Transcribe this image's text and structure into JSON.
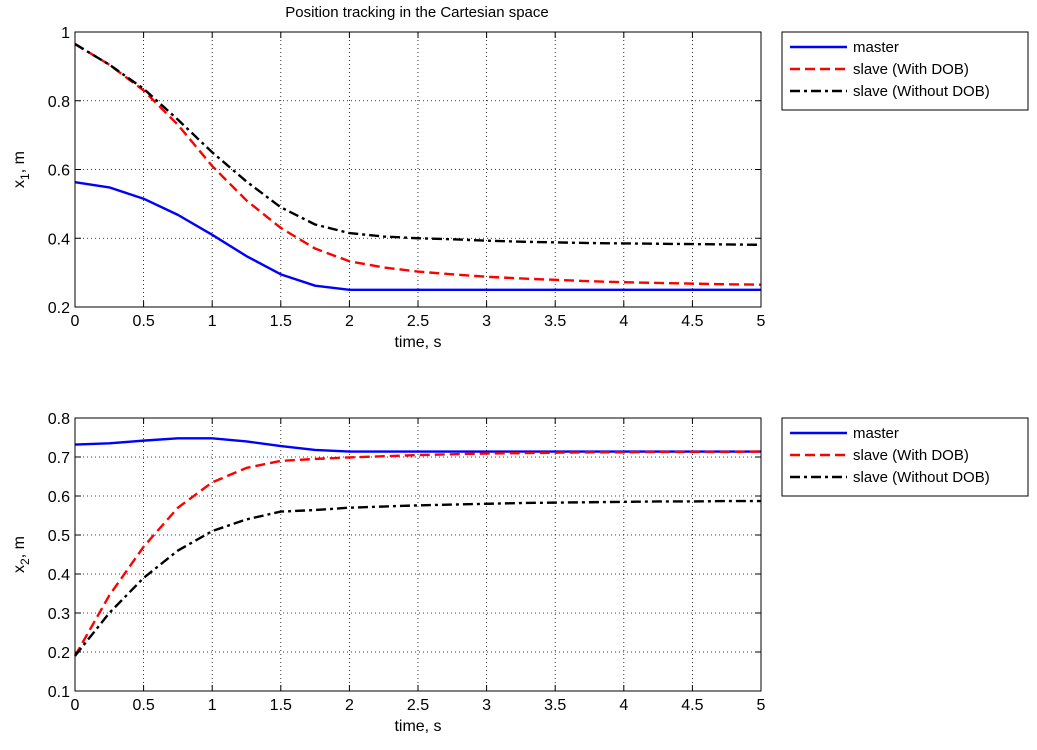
{
  "figure": {
    "title": "Position tracking in the Cartesian space"
  },
  "chart_data": [
    {
      "type": "line",
      "title": "Position tracking in the Cartesian space",
      "xlabel": "time, s",
      "ylabel": "x1, m",
      "ylabel_parts": {
        "base": "x",
        "sub": "1",
        "rest": ", m"
      },
      "xlim": [
        0,
        5
      ],
      "ylim": [
        0.2,
        1.0
      ],
      "xticks": [
        0,
        0.5,
        1,
        1.5,
        2,
        2.5,
        3,
        3.5,
        4,
        4.5,
        5
      ],
      "xtick_labels": [
        "0",
        "0.5",
        "1",
        "1.5",
        "2",
        "2.5",
        "3",
        "3.5",
        "4",
        "4.5",
        "5"
      ],
      "yticks": [
        0.2,
        0.4,
        0.6,
        0.8,
        1.0
      ],
      "ytick_labels": [
        "0.2",
        "0.4",
        "0.6",
        "0.8",
        "1"
      ],
      "grid": true,
      "legend_position": "outside-right",
      "x": [
        0,
        0.25,
        0.5,
        0.75,
        1.0,
        1.25,
        1.5,
        1.75,
        2.0,
        2.25,
        2.5,
        2.75,
        3.0,
        3.25,
        3.5,
        3.75,
        4.0,
        4.25,
        4.5,
        4.75,
        5.0
      ],
      "series": [
        {
          "name": "master",
          "color": "#0000ff",
          "dash": "solid",
          "values": [
            0.563,
            0.548,
            0.515,
            0.468,
            0.41,
            0.348,
            0.295,
            0.262,
            0.25,
            0.25,
            0.25,
            0.25,
            0.25,
            0.25,
            0.25,
            0.25,
            0.25,
            0.25,
            0.25,
            0.25,
            0.25
          ]
        },
        {
          "name": "slave (With DOB)",
          "color": "#ff0000",
          "dash": "dashed",
          "values": [
            0.965,
            0.905,
            0.83,
            0.73,
            0.61,
            0.51,
            0.43,
            0.37,
            0.333,
            0.315,
            0.303,
            0.295,
            0.288,
            0.283,
            0.279,
            0.275,
            0.272,
            0.27,
            0.268,
            0.266,
            0.265
          ]
        },
        {
          "name": "slave (Without DOB)",
          "color": "#000000",
          "dash": "dashdot",
          "values": [
            0.965,
            0.905,
            0.835,
            0.745,
            0.65,
            0.565,
            0.49,
            0.44,
            0.415,
            0.405,
            0.4,
            0.397,
            0.393,
            0.39,
            0.388,
            0.386,
            0.385,
            0.384,
            0.383,
            0.382,
            0.381
          ]
        }
      ]
    },
    {
      "type": "line",
      "title": "",
      "xlabel": "time, s",
      "ylabel": "x2, m",
      "ylabel_parts": {
        "base": "x",
        "sub": "2",
        "rest": ", m"
      },
      "xlim": [
        0,
        5
      ],
      "ylim": [
        0.1,
        0.8
      ],
      "xticks": [
        0,
        0.5,
        1,
        1.5,
        2,
        2.5,
        3,
        3.5,
        4,
        4.5,
        5
      ],
      "xtick_labels": [
        "0",
        "0.5",
        "1",
        "1.5",
        "2",
        "2.5",
        "3",
        "3.5",
        "4",
        "4.5",
        "5"
      ],
      "yticks": [
        0.1,
        0.2,
        0.3,
        0.4,
        0.5,
        0.6,
        0.7,
        0.8
      ],
      "ytick_labels": [
        "0.1",
        "0.2",
        "0.3",
        "0.4",
        "0.5",
        "0.6",
        "0.7",
        "0.8"
      ],
      "grid": true,
      "legend_position": "outside-right",
      "x": [
        0,
        0.25,
        0.5,
        0.75,
        1.0,
        1.25,
        1.5,
        1.75,
        2.0,
        2.25,
        2.5,
        2.75,
        3.0,
        3.25,
        3.5,
        3.75,
        4.0,
        4.25,
        4.5,
        4.75,
        5.0
      ],
      "series": [
        {
          "name": "master",
          "color": "#0000ff",
          "dash": "solid",
          "values": [
            0.732,
            0.735,
            0.742,
            0.748,
            0.748,
            0.74,
            0.728,
            0.718,
            0.714,
            0.714,
            0.714,
            0.714,
            0.714,
            0.714,
            0.714,
            0.714,
            0.714,
            0.714,
            0.714,
            0.714,
            0.714
          ]
        },
        {
          "name": "slave (With DOB)",
          "color": "#ff0000",
          "dash": "dashed",
          "values": [
            0.19,
            0.345,
            0.47,
            0.57,
            0.635,
            0.672,
            0.69,
            0.695,
            0.699,
            0.702,
            0.705,
            0.707,
            0.709,
            0.71,
            0.711,
            0.712,
            0.712,
            0.713,
            0.713,
            0.713,
            0.714
          ]
        },
        {
          "name": "slave (Without DOB)",
          "color": "#000000",
          "dash": "dashdot",
          "values": [
            0.19,
            0.3,
            0.39,
            0.46,
            0.51,
            0.54,
            0.56,
            0.564,
            0.57,
            0.573,
            0.576,
            0.578,
            0.58,
            0.582,
            0.583,
            0.584,
            0.585,
            0.586,
            0.586,
            0.587,
            0.587
          ]
        }
      ]
    }
  ]
}
